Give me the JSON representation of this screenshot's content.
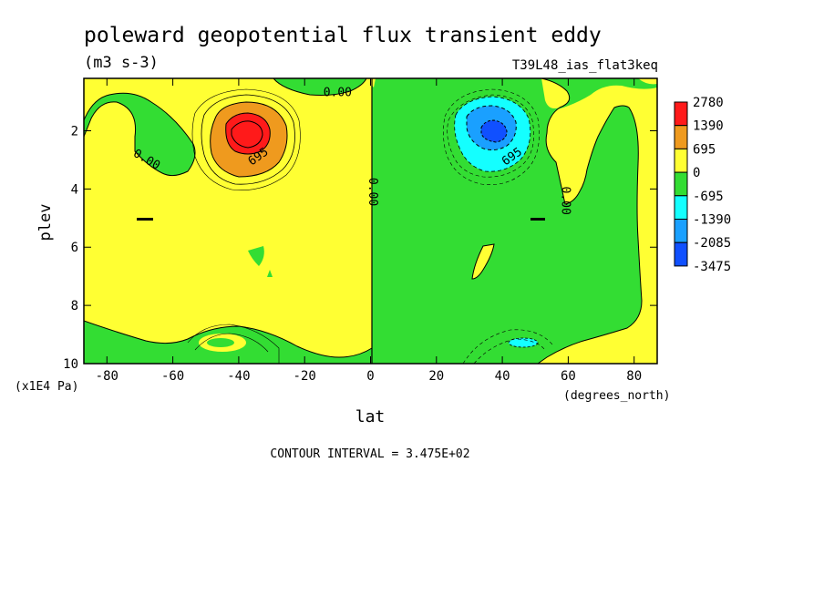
{
  "chart_data": {
    "type": "heatmap",
    "title": "poleward geopotential flux transient eddy",
    "units": "(m3 s-3)",
    "run_label": "T39L48_ias_flat3keq",
    "xlabel": "lat",
    "x_units": "(degrees_north)",
    "ylabel": "plev",
    "y_units": "(x1E4 Pa)",
    "xlim": [
      -87,
      87
    ],
    "ylim": [
      10,
      0.2
    ],
    "x_ticks": [
      -80,
      -60,
      -40,
      -20,
      0,
      20,
      40,
      60,
      80
    ],
    "y_ticks": [
      2,
      4,
      6,
      8,
      10
    ],
    "x_tick_labels": [
      "-80",
      "-60",
      "-40",
      "-20",
      "0",
      "20",
      "40",
      "60",
      "80"
    ],
    "y_tick_labels": [
      "2",
      "4",
      "6",
      "8",
      "10"
    ],
    "contour_interval_text": "CONTOUR INTERVAL = 3.475E+02",
    "colorbar": {
      "labels": [
        "2780",
        "1390",
        "695",
        "0",
        "-695",
        "-1390",
        "-2085",
        "-3475"
      ],
      "colors": [
        "#ff1a1a",
        "#ef9a1e",
        "#ffff33",
        "#33dd33",
        "#14ffff",
        "#1aa0ff",
        "#1050ff"
      ]
    },
    "contour_labels": [
      {
        "text": "0.00",
        "lat": -10,
        "plev": 0.7,
        "angle": 0
      },
      {
        "text": "0.00",
        "lat": -68,
        "plev": 3.0,
        "angle": 30
      },
      {
        "text": "695",
        "lat": -34,
        "plev": 2.9,
        "angle": -35
      },
      {
        "text": "0.00",
        "lat": 0.5,
        "plev": 4.1,
        "angle": 90
      },
      {
        "text": "695",
        "lat": 43,
        "plev": 2.9,
        "angle": -35
      },
      {
        "text": "0.00",
        "lat": 59,
        "plev": 4.4,
        "angle": 90
      }
    ],
    "extrema": [
      {
        "sign": "positive",
        "lat": -39,
        "plev": 2.0,
        "approx_value": 2780
      },
      {
        "sign": "negative",
        "lat": 37,
        "plev": 2.0,
        "approx_value": -2085
      }
    ]
  }
}
